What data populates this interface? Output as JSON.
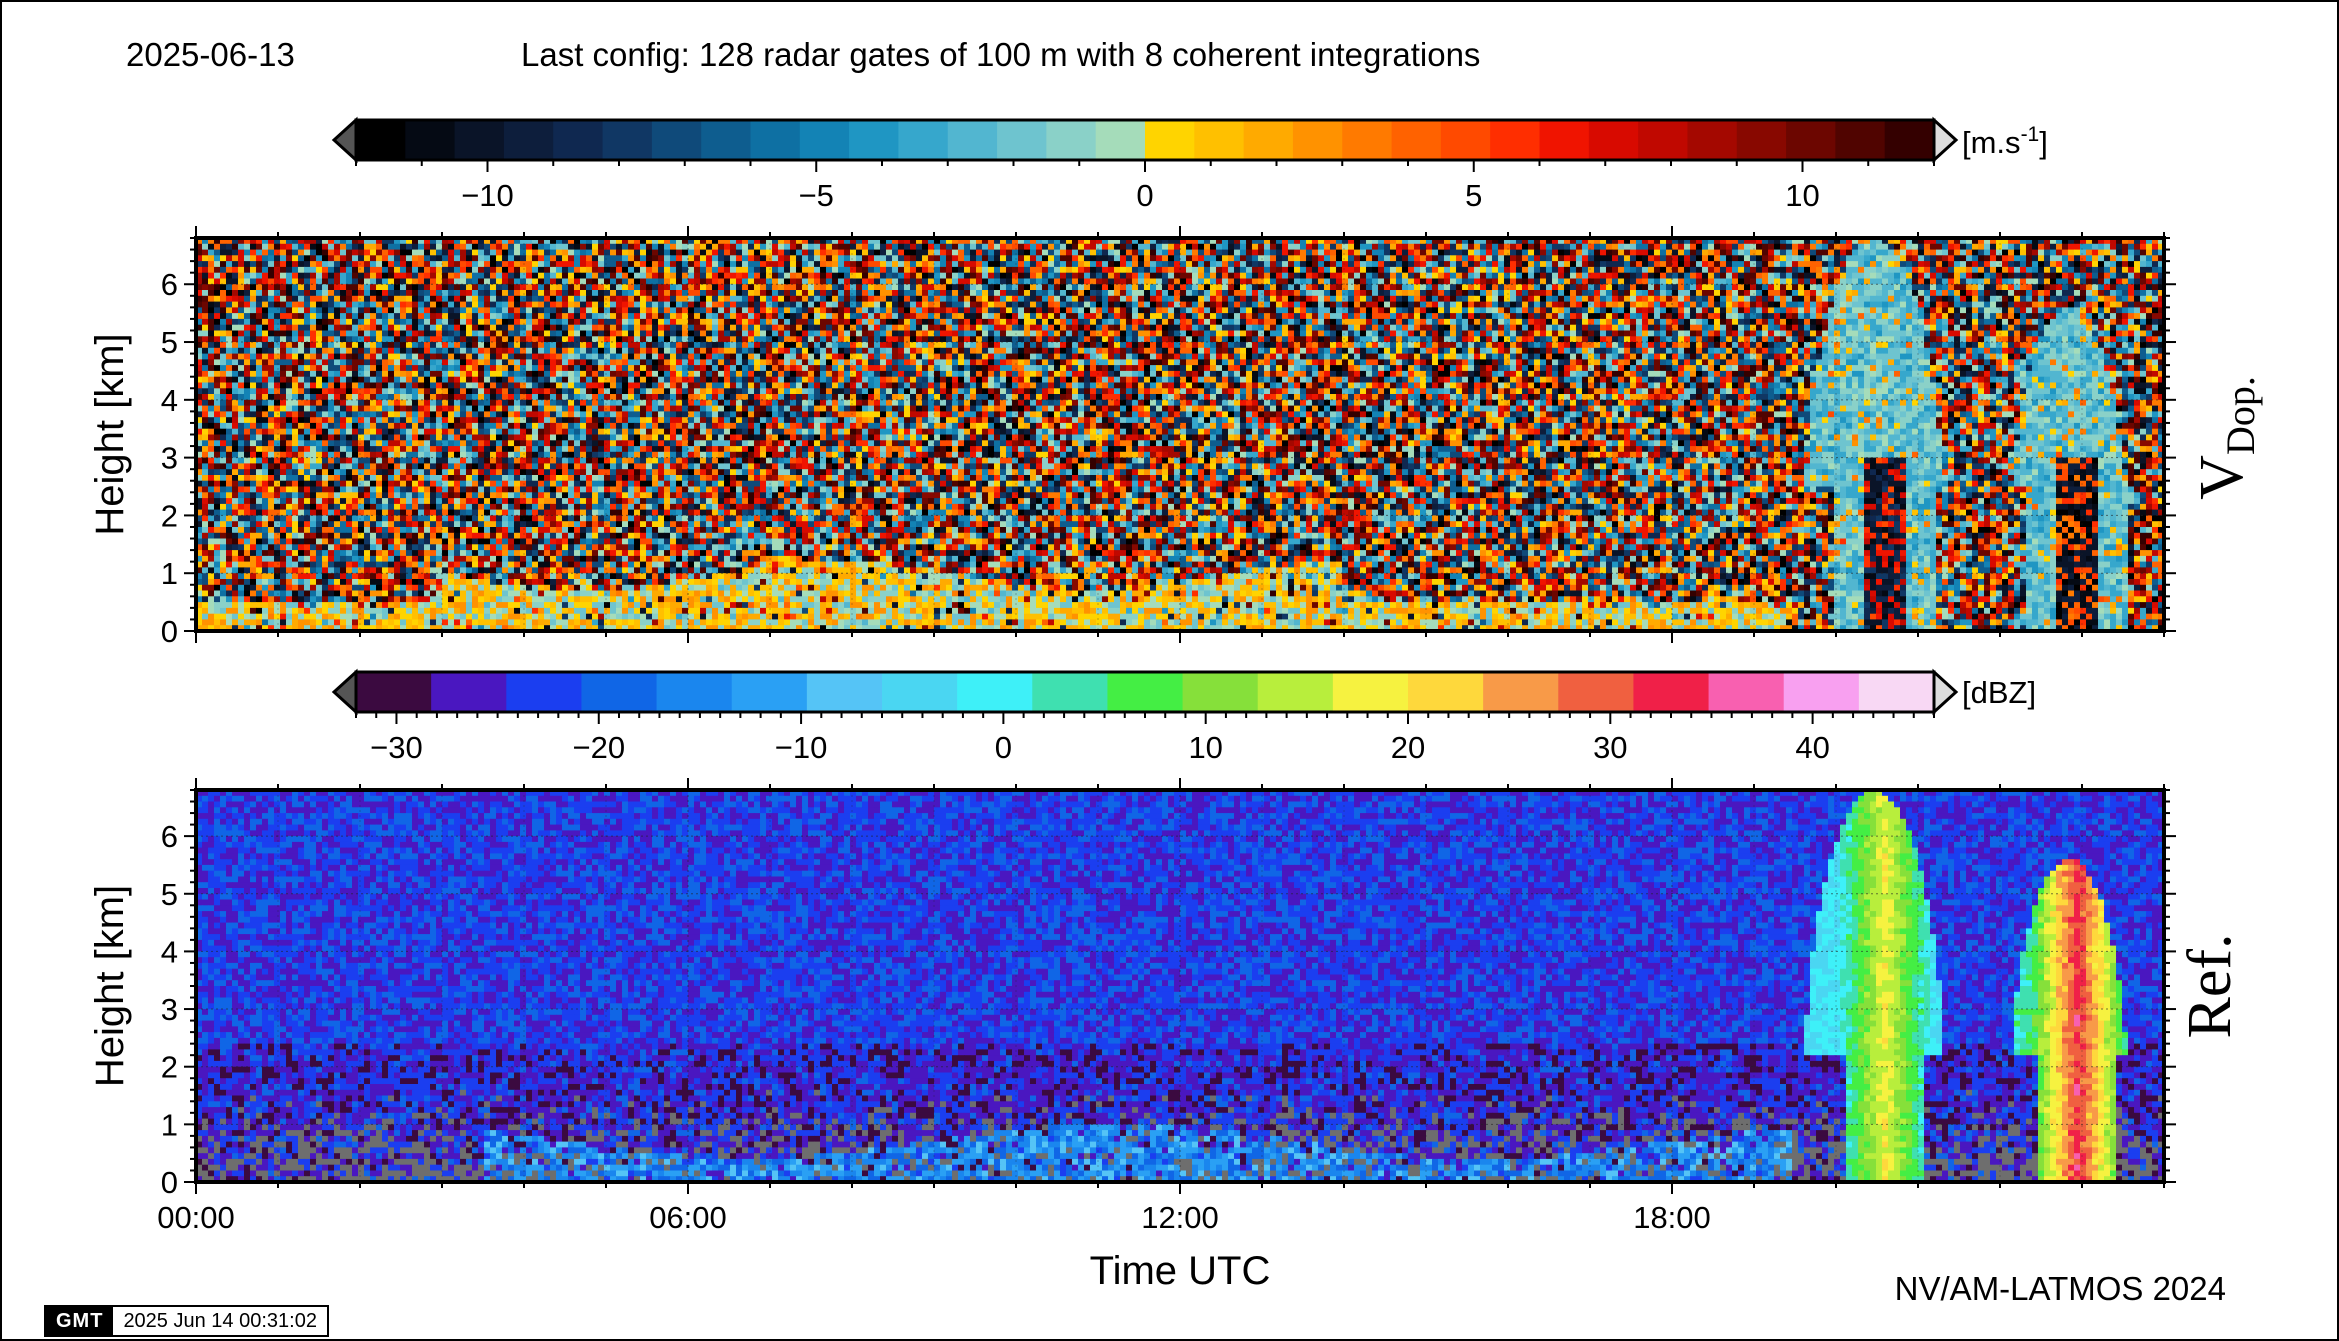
{
  "header": {
    "date": "2025-06-13",
    "config": "Last config: 128 radar gates of 100 m with 8 coherent integrations"
  },
  "footer": {
    "credit": "NV/AM-LATMOS 2024",
    "gmt_logo": "GMT",
    "gmt_timestamp": "2025 Jun 14 00:31:02"
  },
  "chart_data": [
    {
      "type": "heatmap",
      "panel_label": "V",
      "panel_label_sub": "Dop.",
      "ylabel": "Height [km]",
      "xlabel": "",
      "ylim": [
        0,
        6.8
      ],
      "y_ticks": [
        0,
        1,
        2,
        3,
        4,
        5,
        6
      ],
      "x_range_hours": [
        0,
        24
      ],
      "x_tick_hours": [
        0,
        6,
        12,
        18
      ],
      "grid": true,
      "colorbar": {
        "unit": "[m.s-1]",
        "unit_base": "[m.s",
        "unit_exp": "-1",
        "unit_close": "]",
        "range": [
          -12,
          12
        ],
        "ticks": [
          -10,
          -5,
          0,
          5,
          10
        ],
        "tick_labels": [
          "−10",
          "−5",
          "0",
          "5",
          "10"
        ],
        "colors": [
          "#000000",
          "#050a14",
          "#0a1428",
          "#0d1e3c",
          "#0f2850",
          "#103764",
          "#0f4a7a",
          "#0e5d8f",
          "#0e70a3",
          "#1383b5",
          "#1f96c3",
          "#36a7cc",
          "#52b6d0",
          "#6ec4cf",
          "#8ad1c8",
          "#a5dcba",
          "#ffd400",
          "#ffc000",
          "#ffaa00",
          "#ff9200",
          "#ff7a00",
          "#ff6200",
          "#ff4a00",
          "#ff2e00",
          "#f01400",
          "#d80a00",
          "#c00800",
          "#a40800",
          "#880800",
          "#6c0600",
          "#500400",
          "#340000"
        ]
      },
      "features": [
        {
          "kind": "boundary_layer",
          "hours": [
            0,
            19.5
          ],
          "top_km": 1.2,
          "value_range": [
            -2,
            3
          ]
        },
        {
          "kind": "precip_cell",
          "hours": [
            19.6,
            21.6
          ],
          "top_km": 6.8,
          "value_range": [
            -11,
            8
          ]
        },
        {
          "kind": "precip_cell",
          "hours": [
            22.1,
            23.8
          ],
          "top_km": 5.6,
          "value_range": [
            -12,
            6
          ]
        }
      ]
    },
    {
      "type": "heatmap",
      "panel_label": "Ref.",
      "ylabel": "Height [km]",
      "xlabel": "Time UTC",
      "ylim": [
        0,
        6.8
      ],
      "y_ticks": [
        0,
        1,
        2,
        3,
        4,
        5,
        6
      ],
      "x_range_hours": [
        0,
        24
      ],
      "x_tick_hours": [
        0,
        6,
        12,
        18
      ],
      "x_tick_labels": [
        "00:00",
        "06:00",
        "12:00",
        "18:00"
      ],
      "grid": true,
      "colorbar": {
        "unit": "[dBZ]",
        "range": [
          -32,
          46
        ],
        "ticks": [
          -30,
          -20,
          -10,
          0,
          10,
          20,
          30,
          40
        ],
        "tick_labels": [
          "−30",
          "−20",
          "−10",
          "0",
          "10",
          "20",
          "30",
          "40"
        ],
        "colors": [
          "#3b0a40",
          "#4a17c0",
          "#1b3ef0",
          "#1066e6",
          "#1a86ee",
          "#2aa0f4",
          "#55c4f6",
          "#4ad6f2",
          "#3ef0f8",
          "#3fe0b0",
          "#44ee44",
          "#86e03a",
          "#b8ee3c",
          "#f6f240",
          "#fed83c",
          "#f89a48",
          "#f06040",
          "#f02048",
          "#f860b0",
          "#f8a0f0",
          "#f8d8f4"
        ]
      },
      "features": [
        {
          "kind": "noise_floor",
          "dbz_range": [
            -28,
            -18
          ]
        },
        {
          "kind": "boundary_layer",
          "hours": [
            3.5,
            19.5
          ],
          "top_km": 1.0,
          "value_range": [
            -20,
            -8
          ]
        },
        {
          "kind": "precip_cell",
          "hours": [
            19.6,
            21.6
          ],
          "top_km": 6.8,
          "value_range": [
            -5,
            15
          ]
        },
        {
          "kind": "precip_cell",
          "hours": [
            22.1,
            23.8
          ],
          "top_km": 5.6,
          "value_range": [
            0,
            30
          ]
        }
      ]
    }
  ]
}
